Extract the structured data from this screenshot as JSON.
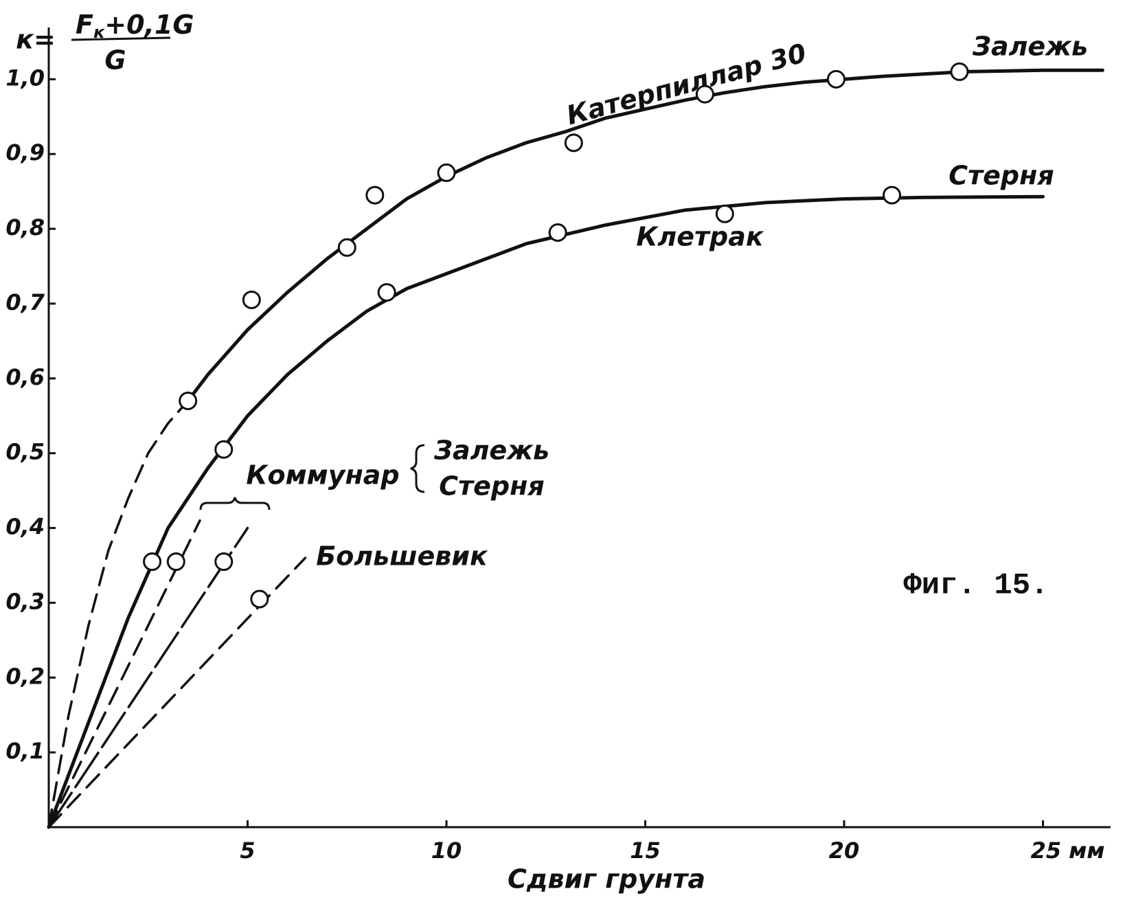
{
  "chart_data": {
    "type": "scatter-curves",
    "ylabel": {
      "k": "к=",
      "numerator": [
        "F",
        "к",
        "+0,1G"
      ],
      "denominator": "G"
    },
    "xlabel": "Сдвиг грунта",
    "figure_label": "Фиг. 15.",
    "group_label": "Коммунар",
    "xlim": [
      0,
      26.7
    ],
    "ylim": [
      0,
      1.06
    ],
    "xticks": [
      5,
      10,
      15,
      {
        "value": 25,
        "label": "25 мм"
      },
      20
    ],
    "yticks": [
      {
        "value": 0.1,
        "label": "0,1"
      },
      {
        "value": 0.2,
        "label": "0,2"
      },
      {
        "value": 0.3,
        "label": "0,3"
      },
      {
        "value": 0.4,
        "label": "0,4"
      },
      {
        "value": 0.5,
        "label": "0,5"
      },
      {
        "value": 0.6,
        "label": "0,6"
      },
      {
        "value": 0.7,
        "label": "0,7"
      },
      {
        "value": 0.8,
        "label": "0,8"
      },
      {
        "value": 0.9,
        "label": "0,9"
      },
      {
        "value": 1.0,
        "label": "1,0"
      }
    ],
    "color": "#111111",
    "series": [
      {
        "name": "Катерпиллар 30",
        "soil": "Залежь",
        "x": [
          3.5,
          5.1,
          7.5,
          8.2,
          10,
          13.2,
          16.5,
          19.8,
          22.9
        ],
        "y": [
          0.57,
          0.705,
          0.775,
          0.845,
          0.875,
          0.915,
          0.98,
          1.0,
          1.01
        ],
        "lines": [
          {
            "style": "dashed",
            "x": [
              0,
              0.5,
              1,
              1.5,
              2,
              2.5,
              3,
              3.5
            ],
            "y": [
              0,
              0.15,
              0.27,
              0.37,
              0.44,
              0.5,
              0.54,
              0.57
            ]
          },
          {
            "style": "solid",
            "x": [
              3.5,
              4,
              5,
              6,
              7,
              8,
              9,
              10,
              11,
              12,
              13,
              14,
              15,
              16,
              17,
              18,
              19,
              20,
              21,
              22,
              23,
              24,
              25,
              26.5
            ],
            "y": [
              0.57,
              0.605,
              0.665,
              0.715,
              0.76,
              0.8,
              0.84,
              0.87,
              0.895,
              0.915,
              0.93,
              0.948,
              0.96,
              0.972,
              0.982,
              0.99,
              0.996,
              1.0,
              1.004,
              1.007,
              1.01,
              1.011,
              1.012,
              1.012
            ]
          }
        ]
      },
      {
        "name": "Клетрак",
        "soil": "Стерня",
        "x": [
          2.6,
          4.4,
          8.5,
          12.8,
          17,
          21.2
        ],
        "y": [
          0.355,
          0.505,
          0.715,
          0.795,
          0.82,
          0.845
        ],
        "lines": [
          {
            "style": "solid",
            "x": [
              0,
              1,
              2,
              3,
              4,
              5,
              6,
              7,
              8,
              9,
              10,
              12,
              14,
              16,
              18,
              20,
              22,
              25
            ],
            "y": [
              0,
              0.14,
              0.28,
              0.4,
              0.48,
              0.55,
              0.605,
              0.65,
              0.69,
              0.72,
              0.74,
              0.78,
              0.805,
              0.825,
              0.835,
              0.84,
              0.842,
              0.843
            ]
          }
        ]
      },
      {
        "soil": "Залежь",
        "x": [
          3.2
        ],
        "y": [
          0.355
        ],
        "lines": [
          {
            "style": "dashed",
            "x": [
              0,
              3.8
            ],
            "y": [
              0,
              0.41
            ]
          }
        ]
      },
      {
        "soil": "Стерня",
        "x": [
          4.4
        ],
        "y": [
          0.355
        ],
        "lines": [
          {
            "style": "long-dash",
            "x": [
              0,
              5
            ],
            "y": [
              0,
              0.4
            ]
          }
        ]
      },
      {
        "name": "Большевик",
        "x": [
          5.3
        ],
        "y": [
          0.305
        ],
        "lines": [
          {
            "style": "dashed",
            "x": [
              0,
              6.45
            ],
            "y": [
              0,
              0.36
            ]
          }
        ]
      }
    ]
  }
}
